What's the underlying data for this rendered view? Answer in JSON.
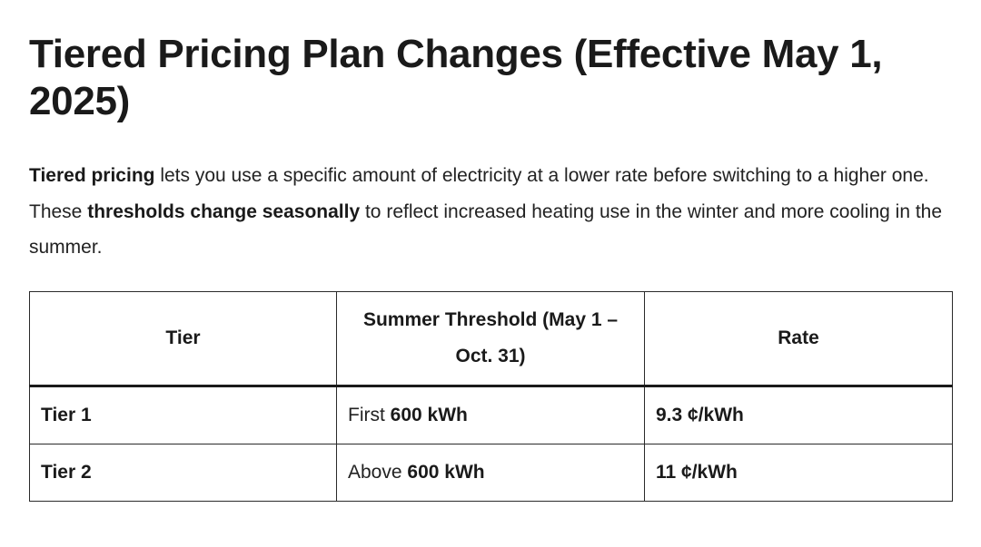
{
  "heading": "Tiered Pricing Plan Changes (Effective May 1, 2025)",
  "intro": {
    "bold1": "Tiered pricing",
    "text1": " lets you use a specific amount of electricity at a lower rate before switching to a higher one. These ",
    "bold2": "thresholds change seasonally",
    "text2": " to reflect increased heating use in the winter and more cooling in the summer."
  },
  "table": {
    "headers": [
      "Tier",
      "Summer Threshold (May 1 – Oct. 31)",
      "Rate"
    ],
    "rows": [
      {
        "tier": "Tier 1",
        "threshold_prefix": "First ",
        "threshold_value": "600 kWh",
        "rate": "9.3 ¢/kWh"
      },
      {
        "tier": "Tier 2",
        "threshold_prefix": "Above ",
        "threshold_value": "600 kWh",
        "rate": "11 ¢/kWh"
      }
    ]
  }
}
